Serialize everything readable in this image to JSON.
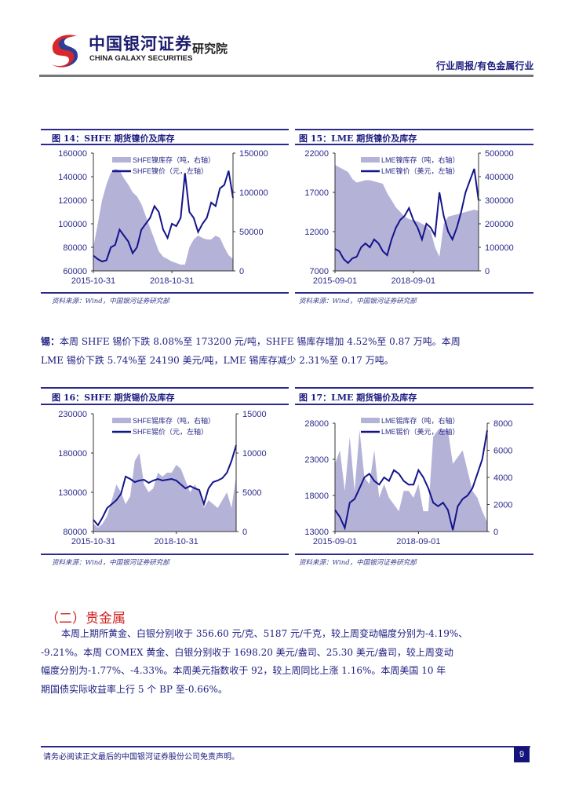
{
  "header": {
    "brand_cn": "中国银河证券",
    "brand_en": "CHINA GALAXY SECURITIES",
    "institute": "研究院",
    "report_type": "行业周报/有色金属行业"
  },
  "colors": {
    "line": "#14148c",
    "area": "#b5b2d8",
    "text": "#1c1c80",
    "section": "#d02020"
  },
  "charts": [
    {
      "title": "图 14：SHFE 期货镍价及库存",
      "source": "资料来源：Wind，中国银河证券研究部",
      "legend": {
        "area": "SHFE镍库存（吨，右轴）",
        "line": "SHFE镍价（元，左轴）"
      },
      "left_ticks": [
        "160000",
        "140000",
        "120000",
        "100000",
        "80000",
        "60000"
      ],
      "left_range": [
        60000,
        160000
      ],
      "right_ticks": [
        "150000",
        "100000",
        "50000",
        "0"
      ],
      "right_range": [
        0,
        150000
      ],
      "x_ticks": [
        {
          "label": "2015-10-31",
          "index": 0
        },
        {
          "label": "2018-10-31",
          "index": 18
        }
      ],
      "line": [
        73000,
        70000,
        68000,
        69000,
        80000,
        82000,
        95000,
        90000,
        85000,
        75000,
        80000,
        95000,
        100000,
        105000,
        115000,
        110000,
        95000,
        88000,
        100000,
        98000,
        105000,
        143000,
        110000,
        105000,
        93000,
        100000,
        105000,
        118000,
        115000,
        130000,
        133000,
        145000,
        122000
      ],
      "area": [
        30000,
        60000,
        90000,
        110000,
        125000,
        130000,
        128000,
        118000,
        110000,
        100000,
        95000,
        85000,
        70000,
        55000,
        40000,
        25000,
        18000,
        15000,
        12000,
        10000,
        8000,
        8000,
        30000,
        40000,
        45000,
        42000,
        40000,
        40000,
        45000,
        42000,
        30000,
        20000,
        15000
      ]
    },
    {
      "title": "图 15：LME 期货镍价及库存",
      "source": "资料来源：Wind，中国银河证券研究部",
      "legend": {
        "area": "LME镍库存（吨，右轴）",
        "line": "LME镍价（美元，左轴）"
      },
      "left_ticks": [
        "22000",
        "17000",
        "12000",
        "7000"
      ],
      "left_range": [
        7000,
        22000
      ],
      "right_ticks": [
        "500000",
        "400000",
        "300000",
        "200000",
        "100000",
        "0"
      ],
      "right_range": [
        0,
        500000
      ],
      "x_ticks": [
        {
          "label": "2015-09-01",
          "index": 0
        },
        {
          "label": "2018-09-01",
          "index": 18
        }
      ],
      "line": [
        9800,
        9500,
        8500,
        8000,
        8600,
        8800,
        10000,
        10500,
        10000,
        11000,
        10500,
        9500,
        9000,
        11000,
        12500,
        13500,
        14000,
        15000,
        13500,
        12500,
        11000,
        13000,
        12500,
        11500,
        17000,
        14000,
        12000,
        11000,
        12500,
        14500,
        17000,
        18500,
        20000,
        16000
      ],
      "area": [
        450000,
        440000,
        430000,
        420000,
        390000,
        375000,
        380000,
        385000,
        385000,
        380000,
        375000,
        370000,
        330000,
        300000,
        270000,
        250000,
        230000,
        220000,
        215000,
        210000,
        200000,
        190000,
        170000,
        100000,
        60000,
        200000,
        230000,
        235000,
        240000,
        245000,
        250000,
        255000,
        260000,
        255000
      ]
    },
    {
      "title": "图 16：SHFE 期货锡价及库存",
      "source": "资料来源：Wind，中国银河证券研究部",
      "legend": {
        "area": "SHFE锡库存（吨，右轴）",
        "line": "SHFE锡价（元，左轴）"
      },
      "left_ticks": [
        "230000",
        "180000",
        "130000",
        "80000"
      ],
      "left_range": [
        80000,
        230000
      ],
      "right_ticks": [
        "15000",
        "10000",
        "5000",
        "0"
      ],
      "right_range": [
        0,
        15000
      ],
      "x_ticks": [
        {
          "label": "2015-10-31",
          "index": 0
        },
        {
          "label": "2018-10-31",
          "index": 18
        }
      ],
      "line": [
        95000,
        88000,
        98000,
        110000,
        115000,
        120000,
        128000,
        150000,
        147000,
        143000,
        145000,
        146000,
        142000,
        145000,
        147000,
        145000,
        146000,
        147000,
        145000,
        140000,
        135000,
        138000,
        135000,
        133000,
        115000,
        135000,
        143000,
        145000,
        148000,
        155000,
        170000,
        190000
      ],
      "area": [
        1000,
        500,
        1000,
        2000,
        4000,
        6000,
        5000,
        3500,
        4500,
        9000,
        10000,
        6000,
        5000,
        5500,
        7500,
        7000,
        7500,
        7500,
        8500,
        8000,
        6500,
        5000,
        6000,
        5000,
        3000,
        4000,
        3500,
        3000,
        4000,
        5000,
        3000,
        7000
      ]
    },
    {
      "title": "图 17：LME 期货锡价及库存",
      "source": "资料来源：Wind，中国银河证券研究部",
      "legend": {
        "area": "LME锡库存（吨，右轴）",
        "line": "LME锡价（美元，左轴）"
      },
      "left_ticks": [
        "28000",
        "23000",
        "18000",
        "13000"
      ],
      "left_range": [
        13000,
        28000
      ],
      "right_ticks": [
        "8000",
        "6000",
        "4000",
        "2000",
        "0"
      ],
      "right_range": [
        0,
        8000
      ],
      "x_ticks": [
        {
          "label": "2015-09-01",
          "index": 0
        },
        {
          "label": "2018-09-01",
          "index": 17
        }
      ],
      "line": [
        16000,
        15000,
        13500,
        17000,
        17500,
        19000,
        20500,
        21000,
        20000,
        19500,
        20500,
        20000,
        21500,
        21000,
        20000,
        19500,
        19500,
        21500,
        20500,
        19000,
        17000,
        16500,
        17000,
        16000,
        13200,
        16500,
        17500,
        18000,
        19000,
        21000,
        23000,
        27000
      ],
      "area": [
        5000,
        6000,
        3000,
        7000,
        3000,
        7500,
        4000,
        3500,
        6000,
        2500,
        3500,
        2500,
        2000,
        1500,
        3000,
        3000,
        2500,
        3500,
        1500,
        1500,
        7000,
        7500,
        7500,
        7500,
        5000,
        5500,
        6000,
        4500,
        3000,
        2500,
        1500,
        700
      ]
    }
  ],
  "tin_text": {
    "label": "锡：",
    "line1": "本周 SHFE 锡价下跌 8.08%至 173200 元/吨，SHFE 锡库存增加 4.52%至 0.87 万吨。本周",
    "line2": "LME 锡价下跌 5.74%至 24190 美元/吨，LME 锡库存减少 2.31%至 0.17 万吨。"
  },
  "precious": {
    "heading": "（二）贵金属",
    "lines": [
      "本周上期所黄金、白银分别收于 356.60 元/克、5187 元/千克，较上周变动幅度分别为-4.19%、",
      "-9.21%。本周 COMEX 黄金、白银分别收于 1698.20 美元/盎司、25.30 美元/盎司，较上周变动",
      "幅度分别为-1.77%、-4.33%。本周美元指数收于 92，较上周同比上涨 1.16%。本周美国 10 年",
      "期国债实际收益率上行 5 个 BP 至-0.66%。"
    ]
  },
  "footer": {
    "disclaimer": "请务必阅读正文最后的中国银河证券股份公司免责声明。",
    "page": "9"
  }
}
